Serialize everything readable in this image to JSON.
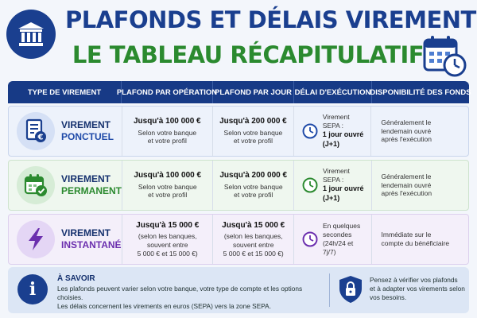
{
  "header": {
    "title_line1": "PLAFONDS ET DÉLAIS VIREMENT :",
    "title_line2": "LE TABLEAU RÉCAPITULATIF",
    "title_color1": "#1a3f8f",
    "title_color2": "#2b8a2f",
    "left_icon": "bank-icon",
    "right_icon": "calendar-clock-icon"
  },
  "table": {
    "columns": [
      "TYPE DE VIREMENT",
      "PLAFOND PAR OPÉRATION",
      "PLAFOND PAR JOUR",
      "DÉLAI D'EXÉCUTION",
      "DISPONIBILITÉ DES FONDS"
    ],
    "header_color": "#173a86",
    "rows": [
      {
        "icon": "document-euro-icon",
        "type_line1": "VIREMENT",
        "type_line2": "PONCTUEL",
        "op_amount": "Jusqu'à 100 000 €",
        "op_note1": "Selon votre banque",
        "op_note2": "et votre profil",
        "op_note3": "",
        "day_amount": "Jusqu'à 200 000 €",
        "day_note1": "Selon votre banque",
        "day_note2": "et votre profil",
        "day_note3": "",
        "delay_line1": "Virement SEPA :",
        "delay_line2": "1 jour ouvré",
        "delay_line3": "(J+1)",
        "avail_line1": "Généralement le",
        "avail_line2": "lendemain ouvré",
        "avail_line3": "après l'exécution",
        "accent": "#1f4aa8"
      },
      {
        "icon": "calendar-check-icon",
        "type_line1": "VIREMENT",
        "type_line2": "PERMANENT",
        "op_amount": "Jusqu'à 100 000 €",
        "op_note1": "Selon votre banque",
        "op_note2": "et votre profil",
        "op_note3": "",
        "day_amount": "Jusqu'à 200 000 €",
        "day_note1": "Selon votre banque",
        "day_note2": "et votre profil",
        "day_note3": "",
        "delay_line1": "Virement SEPA :",
        "delay_line2": "1 jour ouvré",
        "delay_line3": "(J+1)",
        "avail_line1": "Généralement le",
        "avail_line2": "lendemain ouvré",
        "avail_line3": "après l'exécution",
        "accent": "#2b8a2f"
      },
      {
        "icon": "lightning-icon",
        "type_line1": "VIREMENT",
        "type_line2": "INSTANTANÉ",
        "op_amount": "Jusqu'à 15 000 €",
        "op_note1": "(selon les banques,",
        "op_note2": "souvent entre",
        "op_note3": "5 000 € et 15 000 €)",
        "day_amount": "Jusqu'à 15 000 €",
        "day_note1": "(selon les banques,",
        "day_note2": "souvent entre",
        "day_note3": "5 000 € et 15 000 €)",
        "delay_line1": "En quelques",
        "delay_line2": "secondes",
        "delay_line3": "(24h/24 et 7j/7)",
        "avail_line1": "Immédiate sur le",
        "avail_line2": "compte du bénéficiaire",
        "avail_line3": "",
        "accent": "#6b2fae"
      }
    ]
  },
  "footer": {
    "note_title": "À SAVOIR",
    "note_line1": "Les plafonds peuvent varier selon votre banque, votre type de compte et les options choisies.",
    "note_line2": "Les délais concernent les virements en euros (SEPA) vers la zone SEPA.",
    "info_glyph": "i",
    "tip_line1": "Pensez à vérifier vos plafonds",
    "tip_line2": "et à adapter vos virements selon",
    "tip_line3": "vos besoins."
  }
}
